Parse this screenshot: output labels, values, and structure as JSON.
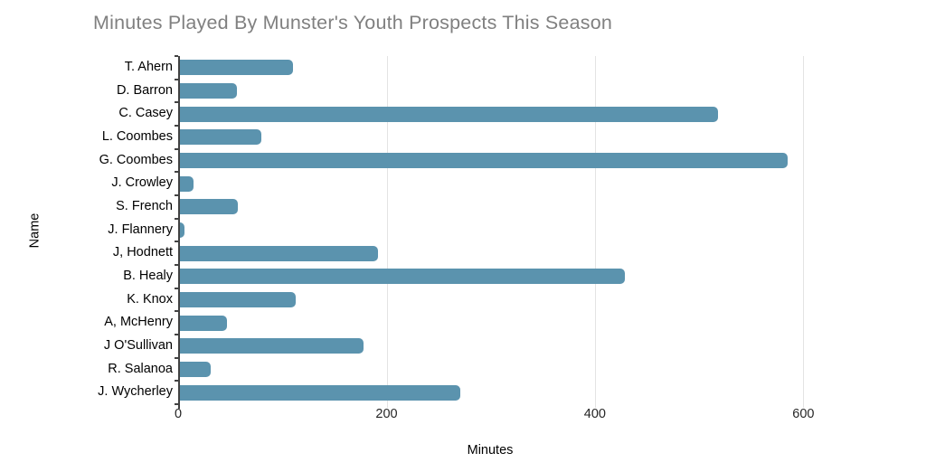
{
  "chart_data": {
    "type": "bar",
    "orientation": "horizontal",
    "title": "Minutes Played By Munster's Youth Prospects This Season",
    "xlabel": "Minutes",
    "ylabel": "Name",
    "categories": [
      "T. Ahern",
      "D. Barron",
      "C. Casey",
      "L. Coombes",
      "G. Coombes",
      "J. Crowley",
      "S. French",
      "J. Flannery",
      "J, Hodnett",
      "B. Healy",
      "K. Knox",
      "A, McHenry",
      "J O'Sullivan",
      "R. Salanoa",
      "J. Wycherley"
    ],
    "values": [
      110,
      56,
      518,
      80,
      585,
      15,
      57,
      6,
      192,
      429,
      113,
      47,
      178,
      31,
      271
    ],
    "x_ticks": [
      0,
      200,
      400,
      600
    ],
    "xlim": [
      0,
      709
    ],
    "grid": "vertical gridlines at x ticks",
    "legend": "none",
    "colors": {
      "bar": "#5b93ae",
      "title": "#808080",
      "gridline": "#e3e3e3",
      "axis": "#424242",
      "category_label": "#000000",
      "tick_label": "#262626"
    }
  }
}
